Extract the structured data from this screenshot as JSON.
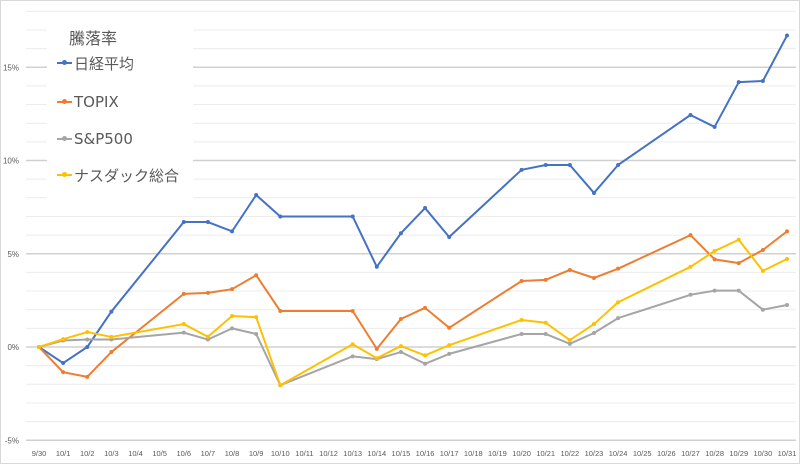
{
  "chart_data": {
    "type": "line",
    "title": "",
    "xlabel": "",
    "ylabel": "",
    "ylim": [
      -5,
      18
    ],
    "y_tick_labels": [
      "-5%",
      "0%",
      "5%",
      "10%",
      "15%"
    ],
    "y_ticks": [
      -5,
      0,
      5,
      10,
      15
    ],
    "grid": "horizontal, every 1%",
    "legend": {
      "title": "騰落率",
      "position": "top-left"
    },
    "categories": [
      "9/30",
      "10/1",
      "10/2",
      "10/3",
      "10/4",
      "10/5",
      "10/6",
      "10/7",
      "10/8",
      "10/9",
      "10/10",
      "10/11",
      "10/12",
      "10/13",
      "10/14",
      "10/15",
      "10/16",
      "10/17",
      "10/18",
      "10/19",
      "10/20",
      "10/21",
      "10/22",
      "10/23",
      "10/24",
      "10/25",
      "10/26",
      "10/27",
      "10/28",
      "10/29",
      "10/30",
      "10/31"
    ],
    "series": [
      {
        "name": "日経平均",
        "color": "#4472c4",
        "values": [
          0,
          -0.86,
          0,
          1.9,
          null,
          null,
          6.7,
          6.7,
          6.2,
          8.15,
          7.0,
          null,
          null,
          7.0,
          4.3,
          6.1,
          7.45,
          5.9,
          null,
          null,
          9.5,
          9.76,
          9.76,
          8.26,
          9.76,
          null,
          null,
          12.44,
          11.8,
          14.2,
          14.26,
          16.7
        ]
      },
      {
        "name": "TOPIX",
        "color": "#ed7d31",
        "values": [
          0,
          -1.35,
          -1.6,
          -0.27,
          null,
          null,
          2.85,
          2.9,
          3.1,
          3.85,
          1.93,
          null,
          null,
          1.93,
          -0.1,
          1.5,
          2.1,
          1.03,
          null,
          null,
          3.54,
          3.6,
          4.13,
          3.7,
          4.2,
          null,
          null,
          6.0,
          4.7,
          4.5,
          5.2,
          6.2
        ]
      },
      {
        "name": "S&P500",
        "color": "#a5a5a5",
        "values": [
          0,
          0.35,
          0.4,
          0.4,
          null,
          null,
          0.77,
          0.4,
          1.0,
          0.7,
          -2.05,
          null,
          null,
          -0.5,
          -0.65,
          -0.27,
          -0.9,
          -0.37,
          null,
          null,
          0.7,
          0.7,
          0.17,
          0.75,
          1.55,
          null,
          null,
          2.8,
          3.02,
          3.02,
          2.0,
          2.25
        ]
      },
      {
        "name": "ナスダック総合",
        "color": "#ffc000",
        "values": [
          0,
          0.42,
          0.8,
          0.54,
          null,
          null,
          1.23,
          0.55,
          1.66,
          1.6,
          -2.05,
          null,
          null,
          0.15,
          -0.6,
          0.05,
          -0.45,
          0.1,
          null,
          null,
          1.45,
          1.3,
          0.37,
          1.23,
          2.4,
          null,
          null,
          4.3,
          5.15,
          5.75,
          4.08,
          4.72
        ]
      }
    ]
  }
}
